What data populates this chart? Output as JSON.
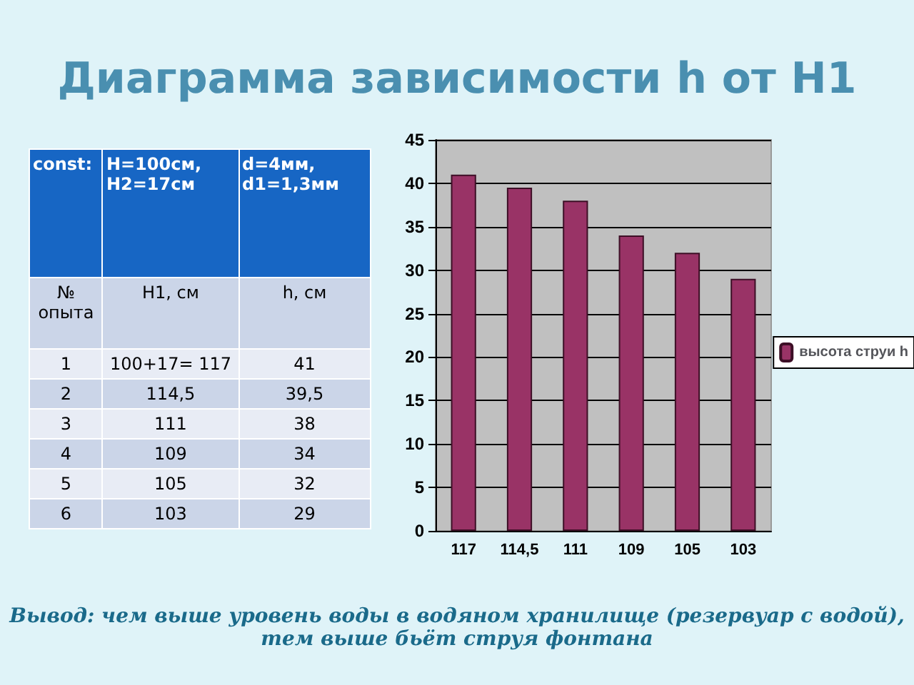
{
  "chart_data": {
    "type": "bar",
    "title": "Диаграмма  зависимости  h от H1",
    "categories": [
      "117",
      "114,5",
      "111",
      "109",
      "105",
      "103"
    ],
    "series": [
      {
        "name": "высота струи h",
        "color": "#993366",
        "values": [
          41,
          39.5,
          38,
          34,
          32,
          29
        ]
      }
    ],
    "ylim": [
      0,
      45
    ],
    "yticks": [
      0,
      5,
      10,
      15,
      20,
      25,
      30,
      35,
      40,
      45
    ],
    "grid": "y",
    "legend": "right",
    "annotations": [
      "const:",
      "H=100см, H2=17см",
      "d=4мм, d1=1,3мм",
      "№ опыта",
      "H1, см",
      "h, см",
      "1",
      "100+17= 117",
      "41",
      "2",
      "114,5",
      "39,5",
      "3",
      "111",
      "38",
      "4",
      "109",
      "34",
      "5",
      "105",
      "32",
      "6",
      "103",
      "29",
      "Вывод: чем выше уровень воды в водяном хранилище (резервуар с водой), тем выше бьёт  струя фонтана"
    ]
  }
}
